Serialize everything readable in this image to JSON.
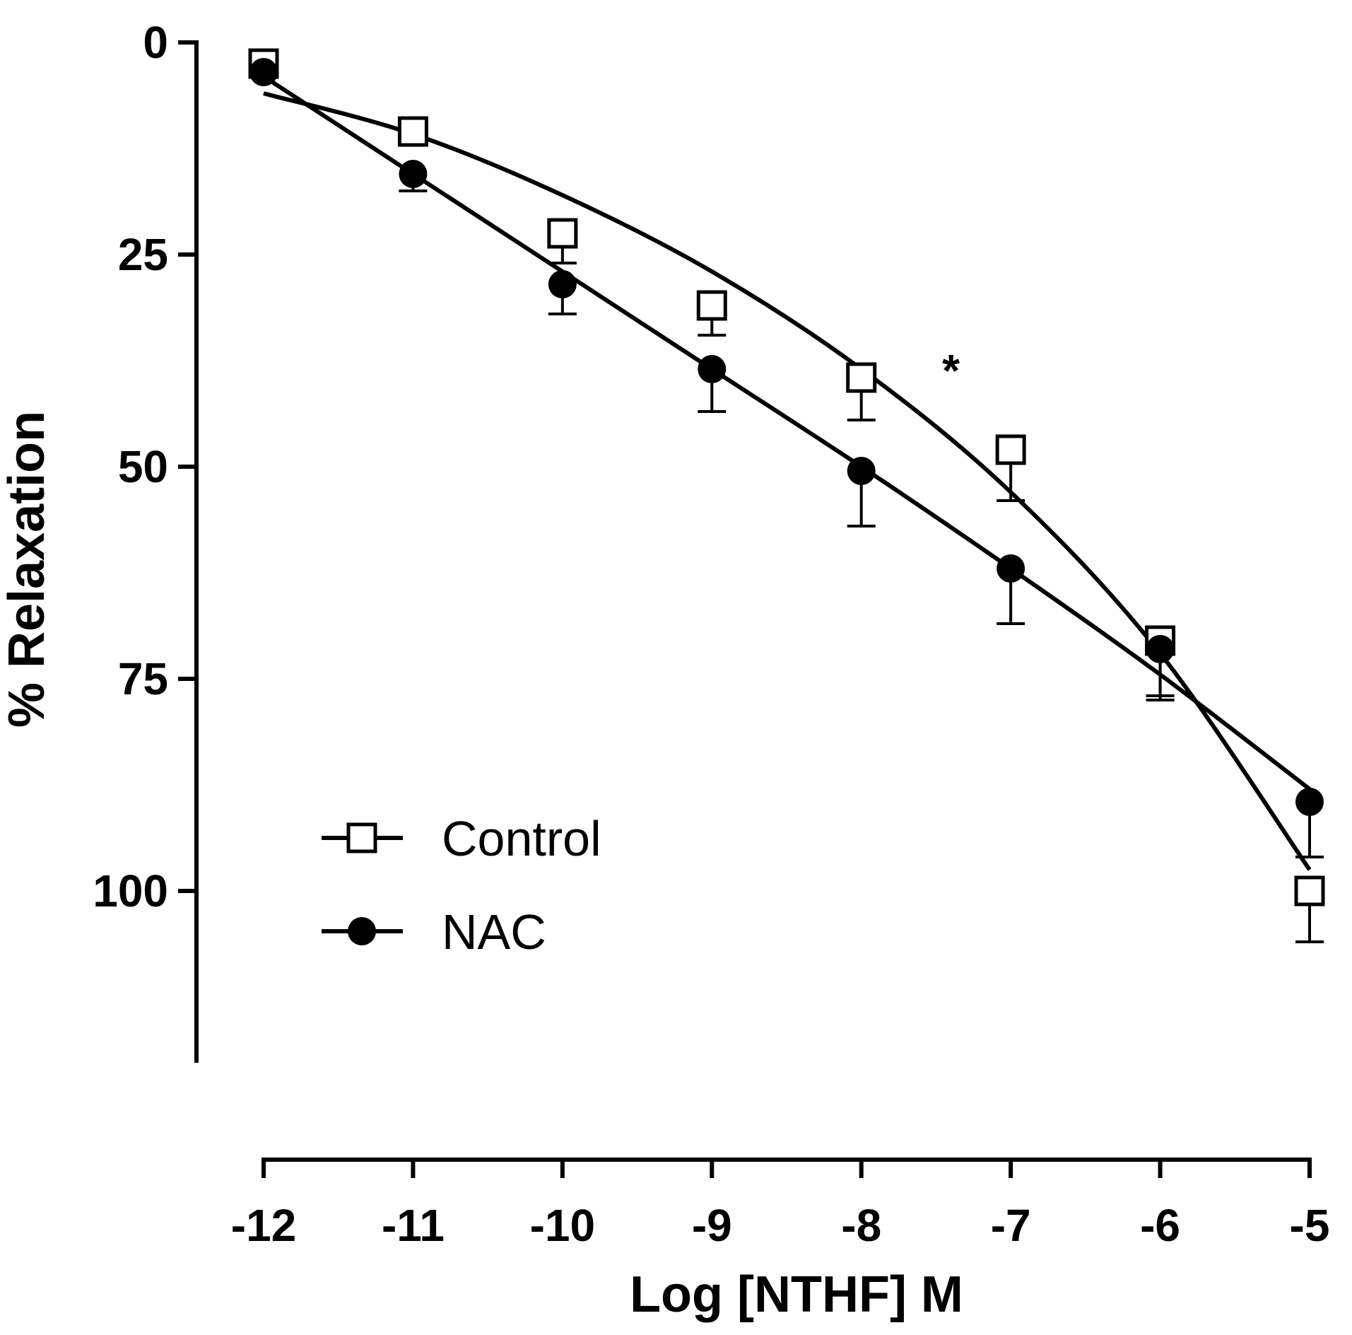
{
  "chart_data": {
    "type": "line",
    "title": "",
    "xlabel": "Log [NTHF] M",
    "ylabel": "% Relaxation",
    "xlim": [
      -12,
      -5
    ],
    "ylim": [
      0,
      120
    ],
    "y_inverted": true,
    "x_ticks": [
      "-12",
      "-11",
      "-10",
      "-9",
      "-8",
      "-7",
      "-6",
      "-5"
    ],
    "y_ticks": [
      "0",
      "25",
      "50",
      "75",
      "100"
    ],
    "grid": false,
    "legend_position": "bottom-left",
    "x": [
      -12,
      -11,
      -10,
      -9,
      -8,
      -7,
      -6,
      -5
    ],
    "series": [
      {
        "name": "Control",
        "marker": "open-square",
        "values": [
          2.5,
          10.5,
          22.5,
          31.0,
          39.5,
          48.0,
          70.5,
          100.0
        ],
        "error": [
          0.5,
          1.0,
          3.5,
          3.5,
          5.0,
          6.0,
          7.0,
          6.0
        ],
        "fit": [
          6.0,
          10.8,
          18.0,
          27.0,
          38.5,
          53.0,
          72.0,
          97.5
        ]
      },
      {
        "name": "NAC",
        "marker": "filled-circle",
        "values": [
          3.5,
          15.5,
          28.5,
          38.5,
          50.5,
          62.0,
          71.5,
          89.5
        ],
        "error": [
          0.5,
          2.0,
          3.5,
          5.0,
          6.5,
          6.5,
          5.5,
          6.5
        ],
        "fit": [
          4.0,
          15.5,
          27.0,
          38.5,
          50.0,
          62.0,
          74.5,
          88.0
        ]
      }
    ],
    "annotations": [
      {
        "text": "*",
        "x": -7.4,
        "y": 38
      }
    ]
  }
}
